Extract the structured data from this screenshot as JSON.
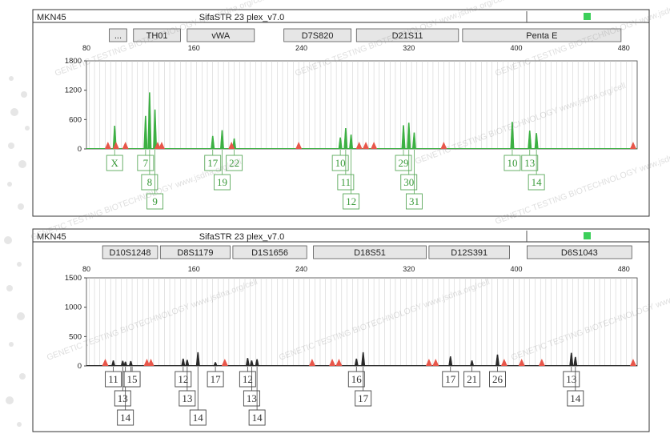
{
  "watermark": "GENETIC TESTING BIOTECHNOLOGY www.jsdna.org/cell",
  "colors": {
    "green": "#3cb043",
    "black": "#2a2a2a",
    "red": "#e8564a",
    "label_green": "#3a9a3a",
    "indicator": "#3ccf5a"
  },
  "chart_data": [
    {
      "type": "electropherogram",
      "sample": "MKN45",
      "title": "SifaSTR 23 plex_v7.0",
      "channel_color": "green",
      "x_range": [
        80,
        490
      ],
      "x_ticks": [
        80,
        160,
        240,
        320,
        400,
        480
      ],
      "y_range": [
        0,
        1800
      ],
      "y_ticks": [
        0,
        600,
        1200,
        1800
      ],
      "markers": [
        {
          "label": "...",
          "start": 97,
          "end": 110
        },
        {
          "label": "TH01",
          "start": 115,
          "end": 150
        },
        {
          "label": "vWA",
          "start": 155,
          "end": 205
        },
        {
          "label": "D7S820",
          "start": 227,
          "end": 277
        },
        {
          "label": "D21S11",
          "start": 281,
          "end": 357
        },
        {
          "label": "Penta E",
          "start": 360,
          "end": 478
        }
      ],
      "peaks": [
        {
          "size": 101,
          "height": 470,
          "allele": "X",
          "row": 0
        },
        {
          "size": 124,
          "height": 670,
          "allele": "7",
          "row": 0
        },
        {
          "size": 127,
          "height": 1150,
          "allele": "8",
          "row": 1
        },
        {
          "size": 131,
          "height": 800,
          "allele": "9",
          "row": 2
        },
        {
          "size": 174,
          "height": 260,
          "allele": "17",
          "row": 0
        },
        {
          "size": 181,
          "height": 380,
          "allele": "19",
          "row": 1
        },
        {
          "size": 190,
          "height": 210,
          "allele": "22",
          "row": 0
        },
        {
          "size": 269,
          "height": 230,
          "allele": "10",
          "row": 0
        },
        {
          "size": 273,
          "height": 420,
          "allele": "11",
          "row": 1
        },
        {
          "size": 277,
          "height": 290,
          "allele": "12",
          "row": 2
        },
        {
          "size": 316,
          "height": 480,
          "allele": "29",
          "row": 0
        },
        {
          "size": 320,
          "height": 530,
          "allele": "30",
          "row": 1
        },
        {
          "size": 324,
          "height": 330,
          "allele": "31",
          "row": 2
        },
        {
          "size": 397,
          "height": 550,
          "allele": "10",
          "row": 0
        },
        {
          "size": 410,
          "height": 370,
          "allele": "13",
          "row": 0
        },
        {
          "size": 415,
          "height": 320,
          "allele": "14",
          "row": 1
        }
      ],
      "red_markers": [
        96,
        102,
        109,
        133,
        136,
        188,
        238,
        283,
        288,
        294,
        346,
        487
      ],
      "extra_labels": []
    },
    {
      "type": "electropherogram",
      "sample": "MKN45",
      "title": "SifaSTR 23 plex_v7.0",
      "channel_color": "black",
      "x_range": [
        80,
        490
      ],
      "x_ticks": [
        80,
        160,
        240,
        320,
        400,
        480
      ],
      "y_range": [
        0,
        1500
      ],
      "y_ticks": [
        0,
        500,
        1000,
        1500
      ],
      "markers": [
        {
          "label": "D10S1248",
          "start": 92,
          "end": 133
        },
        {
          "label": "D8S1179",
          "start": 135,
          "end": 187
        },
        {
          "label": "D1S1656",
          "start": 189,
          "end": 244
        },
        {
          "label": "D18S51",
          "start": 249,
          "end": 333
        },
        {
          "label": "D12S391",
          "start": 335,
          "end": 395
        },
        {
          "label": "D6S1043",
          "start": 408,
          "end": 486
        }
      ],
      "peaks": [
        {
          "size": 100,
          "height": 90,
          "allele": "11",
          "row": 0
        },
        {
          "size": 107,
          "height": 85,
          "allele": "13",
          "row": 1
        },
        {
          "size": 109,
          "height": 70,
          "allele": "14",
          "row": 2
        },
        {
          "size": 113,
          "height": 80,
          "allele": "15",
          "row": 0
        },
        {
          "size": 152,
          "height": 120,
          "allele": "12",
          "row": 0
        },
        {
          "size": 155,
          "height": 100,
          "allele": "13",
          "row": 1
        },
        {
          "size": 163,
          "height": 230,
          "allele": "14",
          "row": 2
        },
        {
          "size": 176,
          "height": 60,
          "allele": "17",
          "row": 0
        },
        {
          "size": 200,
          "height": 130,
          "allele": "12",
          "row": 0
        },
        {
          "size": 203,
          "height": 90,
          "allele": "13",
          "row": 1
        },
        {
          "size": 207,
          "height": 110,
          "allele": "14",
          "row": 2
        },
        {
          "size": 281,
          "height": 120,
          "allele": "16",
          "row": 0
        },
        {
          "size": 286,
          "height": 230,
          "allele": "17",
          "row": 1
        },
        {
          "size": 351,
          "height": 160,
          "allele": "17",
          "row": 0
        },
        {
          "size": 367,
          "height": 90,
          "allele": "21",
          "row": 0
        },
        {
          "size": 386,
          "height": 190,
          "allele": "26",
          "row": 0
        },
        {
          "size": 441,
          "height": 220,
          "allele": "13",
          "row": 0
        },
        {
          "size": 444,
          "height": 150,
          "allele": "14",
          "row": 1
        }
      ],
      "red_markers": [
        94,
        125,
        128,
        183,
        248,
        263,
        268,
        335,
        340,
        391,
        404,
        419,
        487
      ],
      "extra_labels": [
        {
          "text": "15",
          "size": 114,
          "row": 0
        }
      ]
    }
  ]
}
